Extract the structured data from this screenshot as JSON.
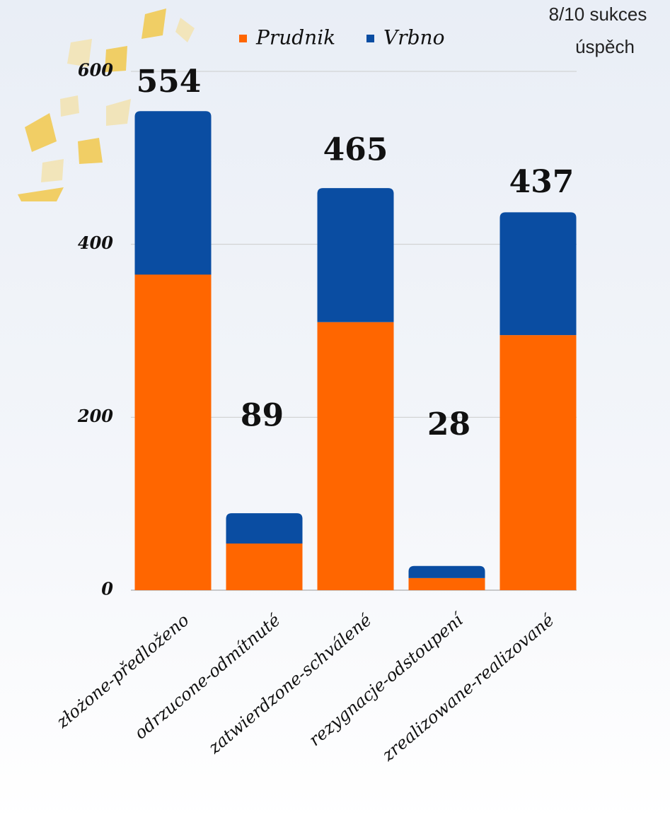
{
  "chart_data": {
    "type": "stacked_bar",
    "annotation": [
      "8/10 sukces",
      "úspěch"
    ],
    "categories": [
      "złożone-předloženo",
      "odrzucone-odmítnuté",
      "zatwierdzone-schválené",
      "rezygnacje-odstoupení",
      "zrealizowane-realizované"
    ],
    "series": [
      {
        "name": "Prudnik",
        "color": "#ff6600",
        "values": [
          365,
          54,
          310,
          14,
          295
        ]
      },
      {
        "name": "Vrbno",
        "color": "#0a4da2",
        "values": [
          189,
          35,
          155,
          14,
          142
        ]
      }
    ],
    "totals": [
      554,
      89,
      465,
      28,
      437
    ],
    "ylim": [
      0,
      600
    ],
    "yticks": [
      0,
      200,
      400,
      600
    ],
    "grid": true,
    "legend": "top"
  }
}
